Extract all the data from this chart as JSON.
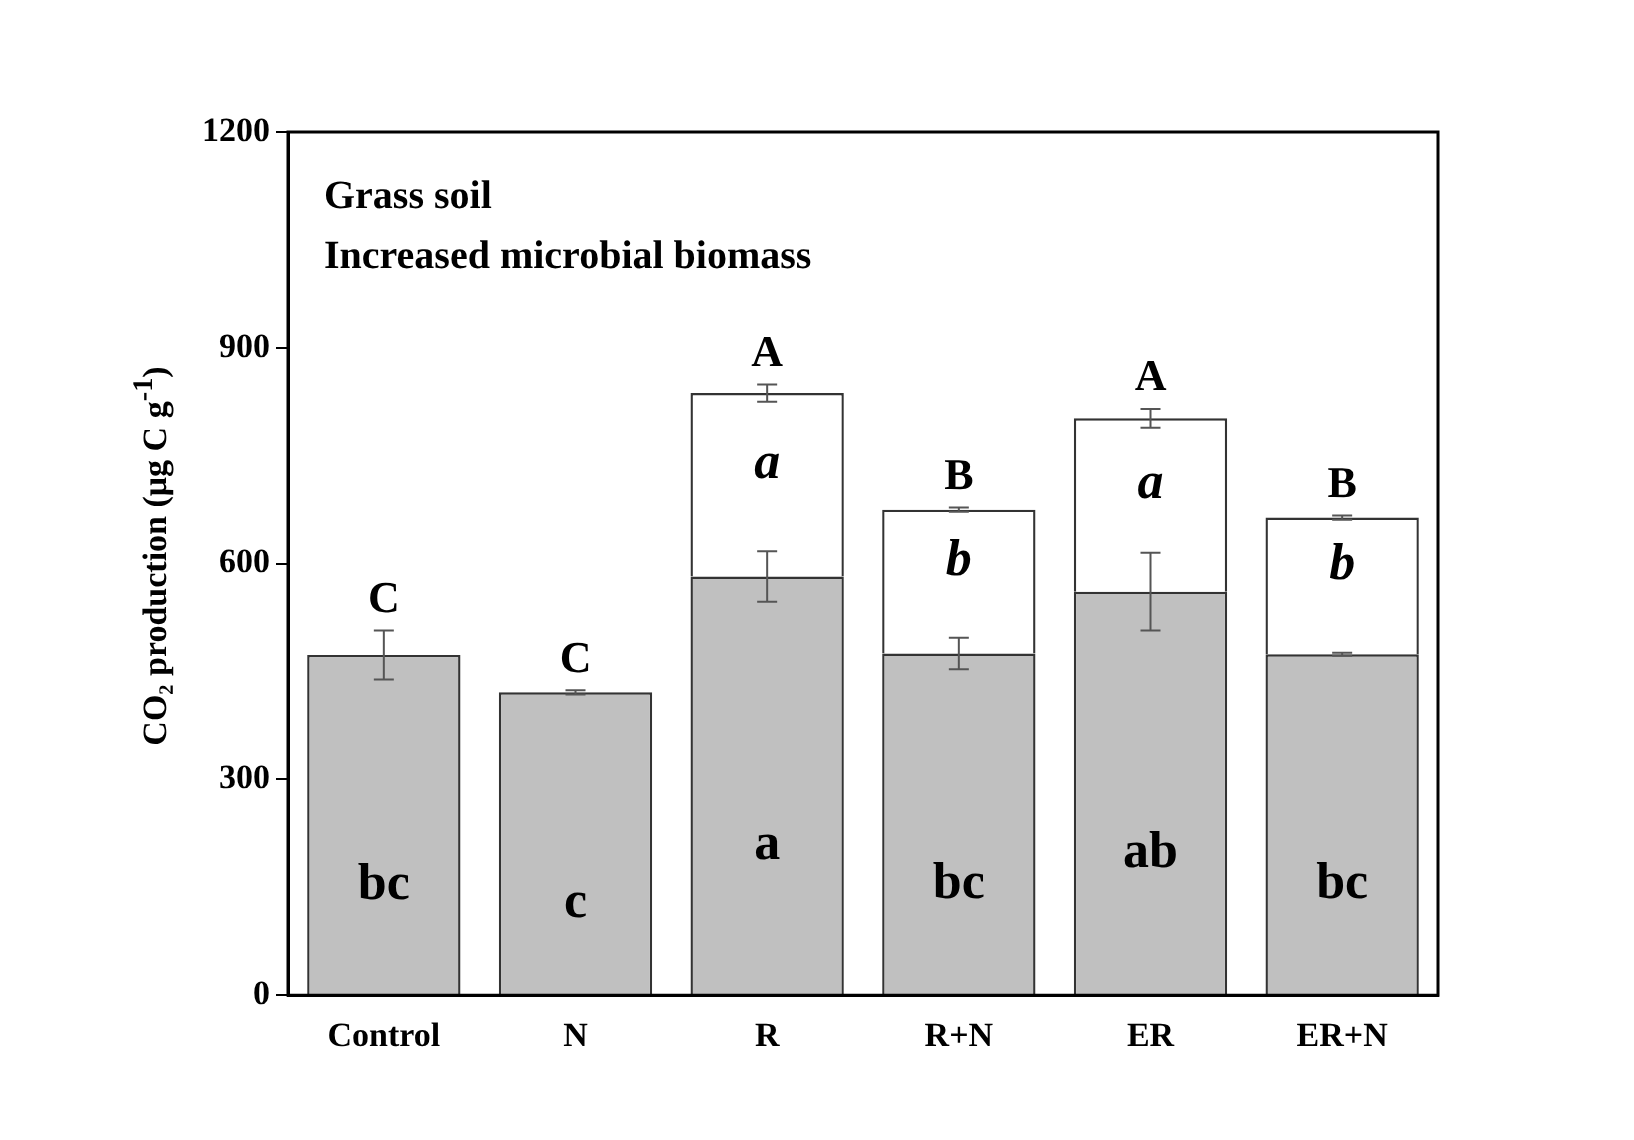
{
  "chart_data": {
    "type": "bar",
    "stacked": true,
    "ylabel": "CO₂ production (μg C g$^{-1}$)",
    "categories": [
      "Control",
      "N",
      "R",
      "R+N",
      "ER",
      "ER+N"
    ],
    "series": [
      {
        "color": "#c0c0c0",
        "values": [
          473,
          421,
          582,
          475,
          561,
          474
        ],
        "errors": [
          34,
          3,
          35,
          22,
          54,
          2
        ],
        "value_labels": [
          "bc",
          "c",
          "a",
          "bc",
          "ab",
          "bc"
        ]
      },
      {
        "color": "#ffffff",
        "values": [
          null,
          null,
          255,
          200,
          241,
          190
        ],
        "errors": [
          null,
          null,
          12,
          3,
          13,
          3
        ],
        "value_labels": [
          null,
          null,
          "a",
          "b",
          "a",
          "b"
        ]
      }
    ],
    "totals": [
      "C",
      "C",
      "A",
      "B",
      "A",
      "B"
    ],
    "ylim": [
      0,
      1200
    ],
    "yticks": [
      0,
      300,
      600,
      900,
      1200
    ],
    "grid": false,
    "legend": false,
    "annotations": [
      "Grass soil",
      "Increased microbial biomass"
    ]
  }
}
